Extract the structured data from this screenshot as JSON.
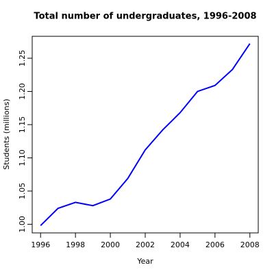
{
  "chart_data": {
    "type": "line",
    "title": "Total number of undergraduates, 1996-2008",
    "x_label": "Year",
    "y_label": "Students (millions)",
    "x": [
      1996,
      1997,
      1998,
      1999,
      2000,
      2001,
      2002,
      2003,
      2004,
      2005,
      2006,
      2007,
      2008
    ],
    "series": [
      {
        "name": "Students",
        "color": "#0000ff",
        "values": [
          0.998,
          1.024,
          1.033,
          1.028,
          1.038,
          1.069,
          1.112,
          1.142,
          1.168,
          1.2,
          1.209,
          1.233,
          1.272
        ]
      }
    ],
    "xlim": [
      1995.52,
      2008.48
    ],
    "xticks": [
      1996,
      1998,
      2000,
      2002,
      2004,
      2006,
      2008
    ],
    "ylim": [
      0.987,
      1.283
    ],
    "yticks": [
      {
        "value": 1,
        "label": "1.00"
      },
      1.05,
      {
        "value": 1.1,
        "label": "1.10"
      },
      1.15,
      {
        "value": 1.2,
        "label": "1.20"
      },
      1.25
    ],
    "grid": false
  }
}
